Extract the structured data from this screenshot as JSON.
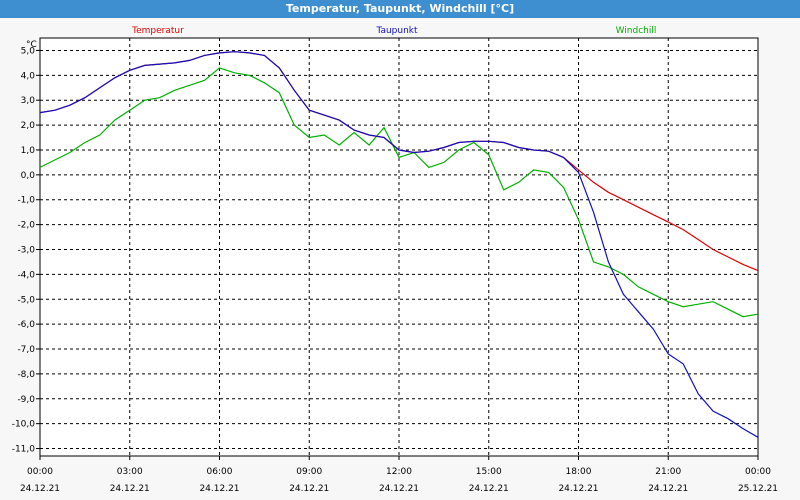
{
  "window": {
    "title": "Temperatur, Taupunkt, Windchill [°C]"
  },
  "chart_data": {
    "type": "line",
    "title": "Temperatur, Taupunkt, Windchill [°C]",
    "ylabel": "°C",
    "ylim": [
      -11.3,
      5.5
    ],
    "xlim": [
      0,
      24
    ],
    "grid": true,
    "legend_position": "top",
    "y_ticks": [
      "5,0",
      "4,0",
      "3,0",
      "2,0",
      "1,0",
      "0,0",
      "-1,0",
      "-2,0",
      "-3,0",
      "-4,0",
      "-5,0",
      "-6,0",
      "-7,0",
      "-8,0",
      "-9,0",
      "-10,0",
      "-11,0"
    ],
    "y_tick_values": [
      5,
      4,
      3,
      2,
      1,
      0,
      -1,
      -2,
      -3,
      -4,
      -5,
      -6,
      -7,
      -8,
      -9,
      -10,
      -11
    ],
    "x_ticks": [
      {
        "time": "00:00",
        "date": "24.12.21"
      },
      {
        "time": "03:00",
        "date": "24.12.21"
      },
      {
        "time": "06:00",
        "date": "24.12.21"
      },
      {
        "time": "09:00",
        "date": "24.12.21"
      },
      {
        "time": "12:00",
        "date": "24.12.21"
      },
      {
        "time": "15:00",
        "date": "24.12.21"
      },
      {
        "time": "18:00",
        "date": "24.12.21"
      },
      {
        "time": "21:00",
        "date": "24.12.21"
      },
      {
        "time": "00:00",
        "date": "25.12.21"
      }
    ],
    "x_tick_values": [
      0,
      3,
      6,
      9,
      12,
      15,
      18,
      21,
      24
    ],
    "series": [
      {
        "name": "Temperatur",
        "color": "#e00000",
        "points": [
          [
            0,
            2.5
          ],
          [
            0.5,
            2.6
          ],
          [
            1,
            2.8
          ],
          [
            1.5,
            3.1
          ],
          [
            2,
            3.5
          ],
          [
            2.5,
            3.9
          ],
          [
            3,
            4.2
          ],
          [
            3.5,
            4.4
          ],
          [
            4,
            4.45
          ],
          [
            4.5,
            4.5
          ],
          [
            5,
            4.6
          ],
          [
            5.5,
            4.8
          ],
          [
            6,
            4.9
          ],
          [
            6.5,
            4.95
          ],
          [
            7,
            4.9
          ],
          [
            7.5,
            4.8
          ],
          [
            8,
            4.3
          ],
          [
            8.5,
            3.4
          ],
          [
            9,
            2.6
          ],
          [
            9.5,
            2.4
          ],
          [
            10,
            2.2
          ],
          [
            10.5,
            1.8
          ],
          [
            11,
            1.6
          ],
          [
            11.5,
            1.5
          ],
          [
            12,
            1.0
          ],
          [
            12.5,
            0.9
          ],
          [
            13,
            0.95
          ],
          [
            13.5,
            1.1
          ],
          [
            14,
            1.3
          ],
          [
            14.5,
            1.35
          ],
          [
            15,
            1.35
          ],
          [
            15.5,
            1.3
          ],
          [
            16,
            1.1
          ],
          [
            16.5,
            1.0
          ],
          [
            17,
            0.95
          ],
          [
            17.5,
            0.7
          ],
          [
            18,
            0.2
          ],
          [
            18.5,
            -0.3
          ],
          [
            19,
            -0.7
          ],
          [
            19.5,
            -1.0
          ],
          [
            20,
            -1.3
          ],
          [
            20.5,
            -1.6
          ],
          [
            21,
            -1.9
          ],
          [
            21.5,
            -2.2
          ],
          [
            22,
            -2.6
          ],
          [
            22.5,
            -3.0
          ],
          [
            23,
            -3.3
          ],
          [
            23.5,
            -3.6
          ],
          [
            24,
            -3.85
          ]
        ]
      },
      {
        "name": "Taupunkt",
        "color": "#1010c0",
        "points": [
          [
            0,
            2.5
          ],
          [
            0.5,
            2.6
          ],
          [
            1,
            2.8
          ],
          [
            1.5,
            3.1
          ],
          [
            2,
            3.5
          ],
          [
            2.5,
            3.9
          ],
          [
            3,
            4.2
          ],
          [
            3.5,
            4.4
          ],
          [
            4,
            4.45
          ],
          [
            4.5,
            4.5
          ],
          [
            5,
            4.6
          ],
          [
            5.5,
            4.8
          ],
          [
            6,
            4.9
          ],
          [
            6.5,
            4.95
          ],
          [
            7,
            4.9
          ],
          [
            7.5,
            4.8
          ],
          [
            8,
            4.3
          ],
          [
            8.5,
            3.4
          ],
          [
            9,
            2.6
          ],
          [
            9.5,
            2.4
          ],
          [
            10,
            2.2
          ],
          [
            10.5,
            1.8
          ],
          [
            11,
            1.6
          ],
          [
            11.5,
            1.5
          ],
          [
            12,
            1.0
          ],
          [
            12.5,
            0.9
          ],
          [
            13,
            0.95
          ],
          [
            13.5,
            1.1
          ],
          [
            14,
            1.3
          ],
          [
            14.5,
            1.35
          ],
          [
            15,
            1.35
          ],
          [
            15.5,
            1.3
          ],
          [
            16,
            1.1
          ],
          [
            16.5,
            1.0
          ],
          [
            17,
            0.95
          ],
          [
            17.5,
            0.7
          ],
          [
            18,
            0.1
          ],
          [
            18.5,
            -1.5
          ],
          [
            19,
            -3.5
          ],
          [
            19.5,
            -4.8
          ],
          [
            20,
            -5.5
          ],
          [
            20.5,
            -6.2
          ],
          [
            21,
            -7.2
          ],
          [
            21.5,
            -7.6
          ],
          [
            22,
            -8.8
          ],
          [
            22.5,
            -9.5
          ],
          [
            23,
            -9.8
          ],
          [
            23.5,
            -10.2
          ],
          [
            24,
            -10.55
          ]
        ]
      },
      {
        "name": "Windchill",
        "color": "#00b000",
        "points": [
          [
            0,
            0.3
          ],
          [
            0.5,
            0.6
          ],
          [
            1,
            0.9
          ],
          [
            1.5,
            1.3
          ],
          [
            2,
            1.6
          ],
          [
            2.5,
            2.2
          ],
          [
            3,
            2.6
          ],
          [
            3.5,
            3.0
          ],
          [
            4,
            3.1
          ],
          [
            4.5,
            3.4
          ],
          [
            5,
            3.6
          ],
          [
            5.5,
            3.8
          ],
          [
            6,
            4.3
          ],
          [
            6.5,
            4.1
          ],
          [
            7,
            4.0
          ],
          [
            7.5,
            3.7
          ],
          [
            8,
            3.3
          ],
          [
            8.5,
            2.0
          ],
          [
            9,
            1.5
          ],
          [
            9.5,
            1.6
          ],
          [
            10,
            1.2
          ],
          [
            10.5,
            1.7
          ],
          [
            11,
            1.2
          ],
          [
            11.5,
            1.9
          ],
          [
            12,
            0.7
          ],
          [
            12.5,
            0.9
          ],
          [
            13,
            0.3
          ],
          [
            13.5,
            0.5
          ],
          [
            14,
            1.0
          ],
          [
            14.5,
            1.3
          ],
          [
            15,
            0.8
          ],
          [
            15.5,
            -0.6
          ],
          [
            16,
            -0.3
          ],
          [
            16.5,
            0.2
          ],
          [
            17,
            0.1
          ],
          [
            17.5,
            -0.5
          ],
          [
            18,
            -1.8
          ],
          [
            18.5,
            -3.5
          ],
          [
            19,
            -3.7
          ],
          [
            19.5,
            -4.0
          ],
          [
            20,
            -4.5
          ],
          [
            20.5,
            -4.8
          ],
          [
            21,
            -5.1
          ],
          [
            21.5,
            -5.3
          ],
          [
            22,
            -5.2
          ],
          [
            22.5,
            -5.1
          ],
          [
            23,
            -5.4
          ],
          [
            23.5,
            -5.7
          ],
          [
            24,
            -5.6
          ]
        ]
      }
    ]
  }
}
